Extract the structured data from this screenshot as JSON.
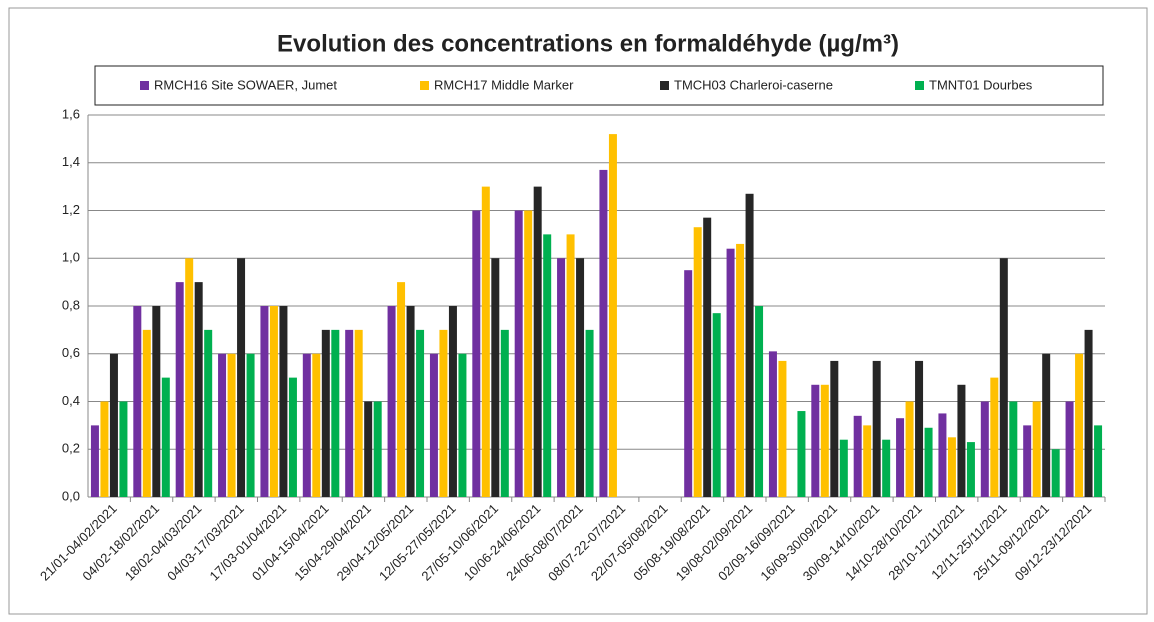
{
  "chart_data": {
    "type": "bar",
    "title": "Evolution des concentrations en formaldéhyde (µg/m³)",
    "categories": [
      "21/01-04/02/2021",
      "04/02-18/02/2021",
      "18/02-04/03/2021",
      "04/03-17/03/2021",
      "17/03-01/04/2021",
      "01/04-15/04/2021",
      "15/04-29/04/2021",
      "29/04-12/05/2021",
      "12/05-27/05/2021",
      "27/05-10/06/2021",
      "10/06-24/06/2021",
      "24/06-08/07/2021",
      "08/07-22-07/2021",
      "22/07-05/08/2021",
      "05/08-19/08/2021",
      "19/08-02/09/2021",
      "02/09-16/09/2021",
      "16/09-30/09/2021",
      "30/09-14/10/2021",
      "14/10-28/10/2021",
      "28/10-12/11/2021",
      "12/11-25/11/2021",
      "25/11-09/12/2021",
      "09/12-23/12/2021"
    ],
    "series": [
      {
        "name": "RMCH16 Site SOWAER, Jumet",
        "color": "#7030a0",
        "values": [
          0.3,
          0.8,
          0.9,
          0.6,
          0.8,
          0.6,
          0.7,
          0.8,
          0.6,
          1.2,
          1.2,
          1.0,
          1.37,
          null,
          0.95,
          1.04,
          0.61,
          0.47,
          0.34,
          0.33,
          0.35,
          0.4,
          0.3,
          0.4
        ]
      },
      {
        "name": "RMCH17 Middle Marker",
        "color": "#ffc000",
        "values": [
          0.4,
          0.7,
          1.0,
          0.6,
          0.8,
          0.6,
          0.7,
          0.9,
          0.7,
          1.3,
          1.2,
          1.1,
          1.52,
          null,
          1.13,
          1.06,
          0.57,
          0.47,
          0.3,
          0.4,
          0.25,
          0.5,
          0.4,
          0.6
        ]
      },
      {
        "name": "TMCH03 Charleroi-caserne",
        "color": "#262626",
        "values": [
          0.6,
          0.8,
          0.9,
          1.0,
          0.8,
          0.7,
          0.4,
          0.8,
          0.8,
          1.0,
          1.3,
          1.0,
          null,
          null,
          1.17,
          1.27,
          null,
          0.57,
          0.57,
          0.57,
          0.47,
          1.0,
          0.6,
          0.7
        ]
      },
      {
        "name": "TMNT01 Dourbes",
        "color": "#00b050",
        "values": [
          0.4,
          0.5,
          0.7,
          0.6,
          0.5,
          0.7,
          0.4,
          0.7,
          0.6,
          0.7,
          1.1,
          0.7,
          null,
          null,
          0.77,
          0.8,
          0.36,
          0.24,
          0.24,
          0.29,
          0.23,
          0.4,
          0.2,
          0.3
        ]
      }
    ],
    "ylim": [
      0,
      1.6
    ],
    "yticks": [
      {
        "value": 0,
        "label": "0,0"
      },
      {
        "value": 0.2,
        "label": "0,2"
      },
      {
        "value": 0.4,
        "label": "0,4"
      },
      {
        "value": 0.6,
        "label": "0,6"
      },
      {
        "value": 0.8,
        "label": "0,8"
      },
      {
        "value": 1.0,
        "label": "1,0"
      },
      {
        "value": 1.2,
        "label": "1,2"
      },
      {
        "value": 1.4,
        "label": "1,4"
      },
      {
        "value": 1.6,
        "label": "1,6"
      }
    ],
    "grid": true
  }
}
